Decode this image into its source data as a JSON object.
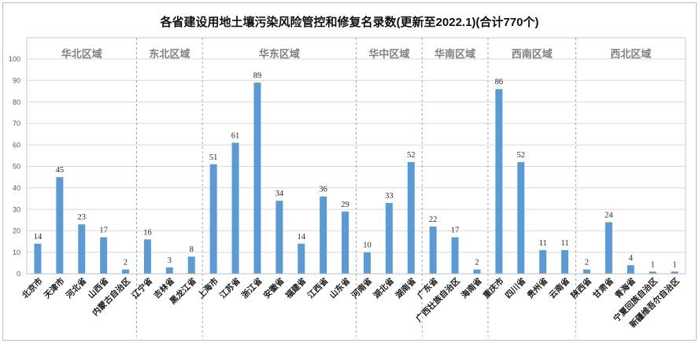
{
  "chart_data": {
    "type": "bar",
    "title": "各省建设用地土壤污染风险管控和修复名录数(更新至2022.1)(合计770个)",
    "ylim": [
      0,
      100
    ],
    "yticks": [
      0,
      10,
      20,
      30,
      40,
      50,
      60,
      70,
      80,
      90,
      100
    ],
    "grid": true,
    "groups": [
      {
        "name": "华北区域",
        "categories": [
          "北京市",
          "天津市",
          "河北省",
          "山西省",
          "内蒙古自治区"
        ],
        "values": [
          14,
          45,
          23,
          17,
          2
        ]
      },
      {
        "name": "东北区域",
        "categories": [
          "辽宁省",
          "吉林省",
          "黑龙江省"
        ],
        "values": [
          16,
          3,
          8
        ]
      },
      {
        "name": "华东区域",
        "categories": [
          "上海市",
          "江苏省",
          "浙江省",
          "安徽省",
          "福建省",
          "江西省",
          "山东省"
        ],
        "values": [
          51,
          61,
          89,
          34,
          14,
          36,
          29
        ]
      },
      {
        "name": "华中区域",
        "categories": [
          "河南省",
          "湖北省",
          "湖南省"
        ],
        "values": [
          10,
          33,
          52
        ]
      },
      {
        "name": "华南区域",
        "categories": [
          "广东省",
          "广西壮族自治区",
          "海南省"
        ],
        "values": [
          22,
          17,
          2
        ]
      },
      {
        "name": "西南区域",
        "categories": [
          "重庆市",
          "四川省",
          "贵州省",
          "云南省"
        ],
        "values": [
          86,
          52,
          11,
          11
        ]
      },
      {
        "name": "西北区域",
        "categories": [
          "陕西省",
          "甘肃省",
          "青海省",
          "宁夏回族自治区",
          "新疆维吾尔自治区"
        ],
        "values": [
          2,
          24,
          4,
          1,
          1
        ]
      }
    ],
    "colors": {
      "bar": "#5b9bd5",
      "region_label": "#808080",
      "gridline": "#d9d9d9",
      "separator": "#a6a6a6"
    }
  }
}
